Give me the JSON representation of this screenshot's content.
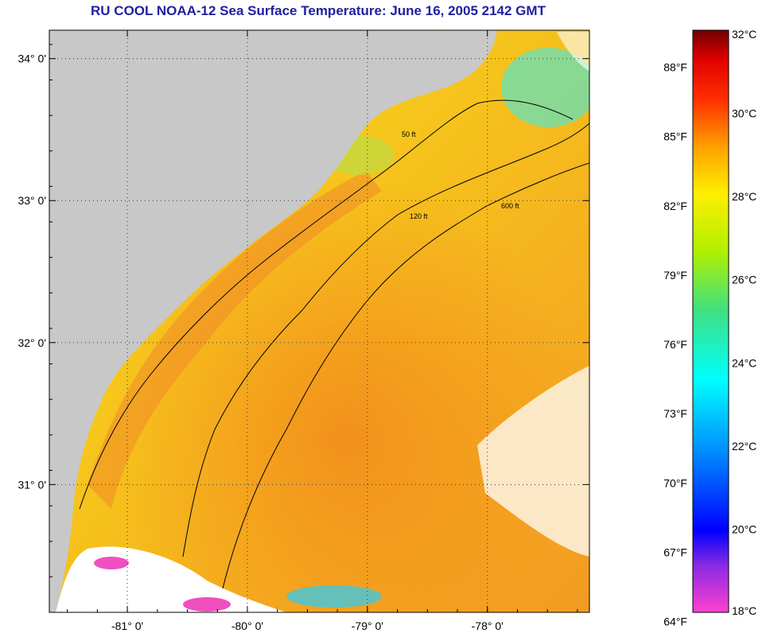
{
  "title": "RU COOL  NOAA-12  Sea Surface Temperature:  June 16, 2005 2142 GMT",
  "map": {
    "lon_range": [
      -81.65,
      -77.15
    ],
    "lat_range": [
      30.1,
      34.2
    ],
    "lat_ticks": [
      {
        "value": 34,
        "label": "34° 0'"
      },
      {
        "value": 33,
        "label": "33° 0'"
      },
      {
        "value": 32,
        "label": "32° 0'"
      },
      {
        "value": 31,
        "label": "31° 0'"
      }
    ],
    "lon_ticks": [
      {
        "value": -81,
        "label": "-81° 0'"
      },
      {
        "value": -80,
        "label": "-80° 0'"
      },
      {
        "value": -79,
        "label": "-79° 0'"
      },
      {
        "value": -78,
        "label": "-78° 0'"
      }
    ],
    "grid": "dotted",
    "contours": [
      {
        "label": "50 ft"
      },
      {
        "label": "120 ft"
      },
      {
        "label": "600 ft"
      }
    ],
    "colors": {
      "land": "#c8c8c8",
      "cloud": "#ffffff",
      "water_warm": "#f5a623",
      "water_mild": "#f5d020"
    }
  },
  "colorbar": {
    "celsius_range": [
      18,
      32
    ],
    "fahrenheit_labels": [
      "88°F",
      "85°F",
      "82°F",
      "79°F",
      "76°F",
      "73°F",
      "70°F",
      "67°F",
      "64°F"
    ],
    "celsius_labels": [
      "32°C",
      "30°C",
      "28°C",
      "26°C",
      "24°C",
      "22°C",
      "20°C",
      "18°C"
    ]
  }
}
